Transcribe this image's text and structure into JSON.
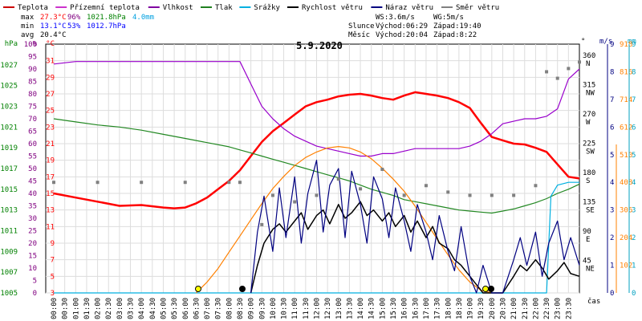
{
  "chart_data": {
    "type": "line",
    "title": "5.9.2020",
    "xlabel": "čas",
    "x_ticks": [
      "00:00",
      "00:30",
      "01:00",
      "01:30",
      "02:00",
      "02:30",
      "03:00",
      "03:30",
      "04:00",
      "04:30",
      "05:00",
      "05:30",
      "06:00",
      "06:30",
      "07:00",
      "07:30",
      "08:00",
      "08:30",
      "09:00",
      "09:30",
      "10:00",
      "10:30",
      "11:00",
      "11:30",
      "12:00",
      "12:30",
      "13:00",
      "13:30",
      "14:00",
      "14:30",
      "15:00",
      "15:30",
      "16:00",
      "16:30",
      "17:00",
      "17:30",
      "18:00",
      "18:30",
      "19:00",
      "19:30",
      "20:00",
      "20:30",
      "21:00",
      "21:30",
      "22:00",
      "22:30",
      "23:00",
      "23:30"
    ],
    "axes": {
      "hpa": {
        "label": "hPa",
        "ticks": [
          "1005",
          "1007",
          "1009",
          "1011",
          "1013",
          "1015",
          "1017",
          "1019",
          "1021",
          "1023",
          "1025",
          "1027"
        ],
        "color": "#008000",
        "range": [
          1005,
          1029
        ]
      },
      "pct": {
        "label": "%",
        "ticks": [
          "0",
          "5",
          "10",
          "15",
          "20",
          "25",
          "30",
          "35",
          "40",
          "45",
          "50",
          "55",
          "60",
          "65",
          "70",
          "75",
          "80",
          "85",
          "90",
          "95",
          "100"
        ],
        "color": "#800080",
        "range": [
          0,
          100
        ]
      },
      "temp": {
        "label": "°C",
        "ticks": [
          "3",
          "5",
          "7",
          "9",
          "11",
          "13",
          "15",
          "17",
          "19",
          "21",
          "23",
          "25",
          "27",
          "29",
          "31"
        ],
        "color": "#ff0000",
        "range": [
          3,
          33
        ]
      },
      "dir": {
        "label": "°",
        "ticks": [
          "45",
          "90",
          "135",
          "180",
          "225",
          "270",
          "315",
          "360"
        ],
        "dir_labels": [
          "NE",
          "E",
          "SE",
          "S",
          "SW",
          "W",
          "NW",
          "N"
        ],
        "color": "#000000",
        "range": [
          0,
          382.5
        ]
      },
      "ms": {
        "label": "m/s",
        "ticks": [
          "0",
          "1",
          "2",
          "3",
          "4",
          "5",
          "6",
          "7",
          "8",
          "9"
        ],
        "color": "#000080",
        "range": [
          0,
          9
        ]
      },
      "wm2": {
        "label": "W/m²",
        "ticks": [
          "0",
          "102",
          "204",
          "306",
          "408",
          "510",
          "612",
          "714",
          "816",
          "918"
        ],
        "color": "#ff8000",
        "range": [
          0,
          918
        ]
      },
      "mm": {
        "label": "mm",
        "ticks": [
          "0",
          "1",
          "2",
          "3",
          "4",
          "5",
          "6",
          "7",
          "8",
          "9"
        ],
        "color": "#00a0c0",
        "range": [
          0,
          9
        ]
      }
    },
    "legend": [
      {
        "name": "Teplota",
        "color": "#cc0000"
      },
      {
        "name": "Přízemní teplota",
        "color": "#cc33cc"
      },
      {
        "name": "Vlhkost",
        "color": "#8000a0"
      },
      {
        "name": "Tlak",
        "color": "#208020"
      },
      {
        "name": "Srážky",
        "color": "#00b0e0"
      },
      {
        "name": "Rychlost větru",
        "color": "#000000"
      },
      {
        "name": "Náraz větru",
        "color": "#000080"
      },
      {
        "name": "Směr větru",
        "color": "#808080"
      }
    ],
    "stats": {
      "max_label": "max",
      "max_temp": "27.3°C",
      "max_hum": "96%",
      "max_press": "1021.8hPa",
      "max_rain": "4.0mm",
      "min_label": "min",
      "min_temp": "13.1°C",
      "min_hum": "53%",
      "min_press": "1012.7hPa",
      "avg_label": "avg",
      "avg_temp": "20.4°C"
    },
    "wind": {
      "ws": "WS:3.6m/s",
      "wg": "WG:5m/s"
    },
    "sun": {
      "label": "Slunce",
      "rise": "Východ:06:29",
      "set": "Západ:19:40"
    },
    "moon": {
      "label": "Měsíc",
      "rise": "Východ:20:04",
      "set": "Západ:8:22"
    },
    "series": [
      {
        "name": "Teplota",
        "axis": "temp",
        "color": "#ff0000",
        "x": [
          0,
          1,
          2,
          3,
          4,
          5,
          5.5,
          6,
          6.5,
          7,
          7.5,
          8,
          8.5,
          9,
          9.5,
          10,
          10.5,
          11,
          11.5,
          12,
          12.5,
          13,
          13.5,
          14,
          14.5,
          15,
          15.5,
          16,
          16.5,
          17,
          17.5,
          18,
          18.5,
          19,
          19.5,
          20,
          20.5,
          21,
          21.5,
          22,
          22.5,
          23,
          23.5,
          24
        ],
        "y": [
          15.0,
          14.5,
          14.0,
          13.5,
          13.6,
          13.3,
          13.2,
          13.3,
          13.8,
          14.5,
          15.5,
          16.5,
          17.8,
          19.5,
          21.2,
          22.5,
          23.5,
          24.5,
          25.5,
          26.0,
          26.3,
          26.7,
          26.9,
          27.0,
          26.8,
          26.5,
          26.3,
          26.8,
          27.2,
          27.0,
          26.8,
          26.5,
          26.0,
          25.3,
          23.5,
          21.8,
          21.4,
          21.0,
          20.9,
          20.5,
          20.0,
          18.5,
          17.0,
          16.8
        ]
      },
      {
        "name": "Vlhkost",
        "axis": "pct",
        "color": "#9900cc",
        "x": [
          0,
          1,
          2,
          3,
          4,
          5,
          6,
          7,
          8,
          8.5,
          9,
          9.5,
          10,
          10.5,
          11,
          11.5,
          12,
          12.5,
          13,
          13.5,
          14,
          14.5,
          15,
          15.5,
          16,
          16.5,
          17,
          17.5,
          18,
          18.5,
          19,
          19.5,
          20,
          20.5,
          21,
          21.5,
          22,
          22.5,
          23,
          23.5,
          24
        ],
        "y": [
          92,
          93,
          93,
          93,
          93,
          93,
          93,
          93,
          93,
          93,
          84,
          75,
          70,
          66,
          63,
          61,
          59,
          58,
          57,
          56,
          55,
          55,
          56,
          56,
          57,
          58,
          58,
          58,
          58,
          58,
          59,
          61,
          64,
          68,
          69,
          70,
          70,
          71,
          74,
          86,
          90
        ]
      },
      {
        "name": "Tlak",
        "axis": "hpa",
        "color": "#228822",
        "x": [
          0,
          1,
          2,
          3,
          4,
          5,
          6,
          7,
          8,
          8.5,
          9,
          9.5,
          10,
          10.5,
          11,
          11.5,
          12,
          12.5,
          13,
          13.5,
          14,
          14.5,
          15,
          15.5,
          16,
          16.5,
          17,
          17.5,
          18,
          18.5,
          19,
          19.5,
          20,
          20.5,
          21,
          21.5,
          22,
          22.5,
          23,
          23.5,
          24
        ],
        "y": [
          1021.8,
          1021.5,
          1021.2,
          1021.0,
          1020.7,
          1020.3,
          1019.9,
          1019.5,
          1019.1,
          1018.8,
          1018.5,
          1018.2,
          1017.9,
          1017.6,
          1017.3,
          1017.0,
          1016.7,
          1016.4,
          1016.1,
          1015.8,
          1015.4,
          1015.0,
          1014.7,
          1014.4,
          1014.0,
          1013.8,
          1013.6,
          1013.4,
          1013.2,
          1013.0,
          1012.9,
          1012.8,
          1012.7,
          1012.9,
          1013.1,
          1013.4,
          1013.7,
          1014.1,
          1014.6,
          1015.0,
          1015.5
        ]
      },
      {
        "name": "Srážky",
        "axis": "mm",
        "color": "#00b0e0",
        "x": [
          0,
          22.5,
          22.7,
          23.0,
          23.5,
          24
        ],
        "y": [
          0,
          0,
          3.5,
          3.9,
          4.0,
          4.0
        ]
      },
      {
        "name": "Solar",
        "axis": "wm2",
        "color": "#ff8000",
        "x": [
          6.5,
          7,
          7.5,
          8,
          8.5,
          9,
          9.5,
          10,
          10.5,
          11,
          11.5,
          12,
          12.5,
          13,
          13.5,
          14,
          14.5,
          15,
          15.5,
          16,
          16.5,
          17,
          17.5,
          18,
          18.5,
          19,
          19.5,
          20
        ],
        "y": [
          0,
          40,
          90,
          150,
          210,
          270,
          330,
          385,
          430,
          470,
          500,
          520,
          535,
          540,
          535,
          520,
          495,
          460,
          420,
          375,
          320,
          260,
          200,
          140,
          85,
          40,
          10,
          0
        ]
      },
      {
        "name": "Rychlost větru",
        "axis": "ms",
        "color": "#000000",
        "x": [
          9,
          9.3,
          9.6,
          10,
          10.3,
          10.6,
          11,
          11.3,
          11.6,
          12,
          12.3,
          12.6,
          13,
          13.3,
          13.6,
          14,
          14.3,
          14.6,
          15,
          15.3,
          15.6,
          16,
          16.3,
          16.6,
          17,
          17.3,
          17.6,
          18,
          18.3,
          18.6,
          19,
          19.3,
          19.6,
          20,
          20.5,
          21,
          21.3,
          21.6,
          22,
          22.3,
          22.6,
          23,
          23.3,
          23.6,
          24
        ],
        "y": [
          0,
          1.0,
          1.8,
          2.3,
          2.5,
          2.2,
          2.6,
          2.9,
          2.3,
          2.8,
          3.0,
          2.5,
          3.2,
          2.7,
          2.9,
          3.3,
          2.8,
          3.0,
          2.6,
          2.9,
          2.4,
          2.8,
          2.2,
          2.6,
          2.0,
          2.4,
          1.8,
          1.6,
          1.2,
          1.0,
          0.6,
          0.3,
          0,
          0,
          0,
          0.6,
          1.0,
          0.8,
          1.2,
          0.9,
          0.5,
          0.8,
          1.1,
          0.7,
          0.6
        ]
      },
      {
        "name": "Náraz větru",
        "axis": "ms",
        "color": "#000080",
        "x": [
          9,
          9.3,
          9.6,
          10,
          10.3,
          10.6,
          11,
          11.3,
          11.6,
          12,
          12.3,
          12.6,
          13,
          13.3,
          13.6,
          14,
          14.3,
          14.6,
          15,
          15.3,
          15.6,
          16,
          16.3,
          16.6,
          17,
          17.3,
          17.6,
          18,
          18.3,
          18.6,
          19,
          19.3,
          19.6,
          20,
          20.5,
          21,
          21.3,
          21.6,
          22,
          22.3,
          22.6,
          23,
          23.3,
          23.6,
          24
        ],
        "y": [
          0,
          2.2,
          3.5,
          1.5,
          3.8,
          2.0,
          4.2,
          1.8,
          3.6,
          4.8,
          2.2,
          3.9,
          4.5,
          2.0,
          4.4,
          3.2,
          1.8,
          4.2,
          3.4,
          2.0,
          3.8,
          2.6,
          1.5,
          3.2,
          2.2,
          1.2,
          2.8,
          1.5,
          0.8,
          2.4,
          0.6,
          0,
          1.0,
          0,
          0,
          1.2,
          2.0,
          1.0,
          2.2,
          0.6,
          1.8,
          2.6,
          1.2,
          2.0,
          1.0
        ]
      },
      {
        "name": "Směr větru",
        "axis": "dir",
        "color": "#808080",
        "x": [
          0,
          2,
          4,
          6,
          8,
          8.5,
          9.5,
          10,
          11,
          12,
          13,
          14,
          15,
          16,
          17,
          18,
          19,
          20,
          21,
          22,
          22.5,
          23,
          23.5,
          24
        ],
        "y": [
          170,
          170,
          170,
          170,
          170,
          170,
          105,
          150,
          140,
          150,
          175,
          160,
          190,
          150,
          165,
          155,
          150,
          150,
          150,
          165,
          340,
          330,
          345,
          355
        ]
      }
    ]
  }
}
